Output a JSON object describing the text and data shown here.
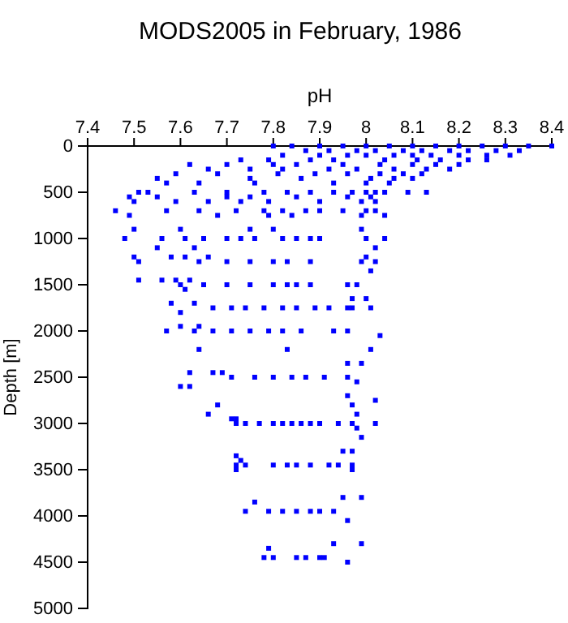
{
  "chart_data": {
    "type": "scatter",
    "title": "MODS2005 in February, 1986",
    "xlabel": "pH",
    "ylabel": "Depth [m]",
    "marker": "square",
    "xlim": [
      7.4,
      8.4
    ],
    "xticks": [
      7.4,
      7.5,
      7.6,
      7.7,
      7.8,
      7.9,
      8,
      8.1,
      8.2,
      8.3,
      8.4
    ],
    "ylim": [
      5000,
      0
    ],
    "yticks": [
      0,
      500,
      1000,
      1500,
      2000,
      2500,
      3000,
      3500,
      4000,
      4500,
      5000
    ],
    "series": [
      {
        "color": "#0000ff",
        "x": [
          7.8,
          7.84,
          7.9,
          7.95,
          8.0,
          8.05,
          8.1,
          8.15,
          8.2,
          8.25,
          8.3,
          8.35,
          8.4,
          7.87,
          7.92,
          7.98,
          8.02,
          8.08,
          8.12,
          8.18,
          8.22,
          8.28,
          8.33,
          7.82,
          7.9,
          7.96,
          8.0,
          8.06,
          8.1,
          8.14,
          8.2,
          8.26,
          8.31,
          7.73,
          7.79,
          7.88,
          7.93,
          8.04,
          8.11,
          8.16,
          8.22,
          8.26,
          7.62,
          7.7,
          7.8,
          7.85,
          7.95,
          8.03,
          8.1,
          8.15,
          8.2,
          7.66,
          7.75,
          7.82,
          7.92,
          7.98,
          8.06,
          8.13,
          8.18,
          7.59,
          7.68,
          7.81,
          7.89,
          7.96,
          8.03,
          8.08,
          8.12,
          7.55,
          7.75,
          7.86,
          8.01,
          8.06,
          8.1,
          7.57,
          7.64,
          7.76,
          7.93,
          8.0,
          8.05,
          7.51,
          7.53,
          7.63,
          7.7,
          7.78,
          7.83,
          7.88,
          7.93,
          7.97,
          8.0,
          8.02,
          8.04,
          8.09,
          8.13,
          7.49,
          7.55,
          7.7,
          7.75,
          7.85,
          7.96,
          8.01,
          7.5,
          7.59,
          7.66,
          7.73,
          7.79,
          7.9,
          7.99,
          8.02,
          7.46,
          7.57,
          7.64,
          7.72,
          7.78,
          7.82,
          7.87,
          7.9,
          7.95,
          8.0,
          8.02,
          7.49,
          7.68,
          7.79,
          7.84,
          7.99,
          8.04,
          7.5,
          7.6,
          7.75,
          7.8,
          7.99,
          7.48,
          7.56,
          7.61,
          7.65,
          7.7,
          7.73,
          7.76,
          7.82,
          7.85,
          7.88,
          7.9,
          8.0,
          8.04,
          7.55,
          7.63,
          8.02,
          7.5,
          7.58,
          7.61,
          7.66,
          8.0,
          7.51,
          7.64,
          7.7,
          7.75,
          7.8,
          7.83,
          7.88,
          7.99,
          8.02,
          8.01,
          7.51,
          7.56,
          7.59,
          7.62,
          7.6,
          7.65,
          7.7,
          7.75,
          7.8,
          7.83,
          7.85,
          7.88,
          7.96,
          7.98,
          7.61,
          7.97,
          8.0,
          7.58,
          7.63,
          7.67,
          7.71,
          7.74,
          7.78,
          7.82,
          7.85,
          7.89,
          7.92,
          7.96,
          7.97,
          8.01,
          7.6,
          7.6,
          7.64,
          7.57,
          7.63,
          7.67,
          7.71,
          7.75,
          7.79,
          7.82,
          7.86,
          7.93,
          7.96,
          8.03,
          7.64,
          7.83,
          8.01,
          7.96,
          7.99,
          7.62,
          7.67,
          7.69,
          7.71,
          7.76,
          7.8,
          7.84,
          7.87,
          7.91,
          7.96,
          7.98,
          7.6,
          7.62,
          7.96,
          8.02,
          7.68,
          7.97,
          7.98,
          7.66,
          7.72,
          7.71,
          7.72,
          7.74,
          7.77,
          7.8,
          7.82,
          7.84,
          7.86,
          7.88,
          7.9,
          7.94,
          7.97,
          8.02,
          7.98,
          7.99,
          7.95,
          7.97,
          7.72,
          7.73,
          7.72,
          7.74,
          7.8,
          7.83,
          7.85,
          7.88,
          7.92,
          7.94,
          7.97,
          7.72,
          7.97,
          7.95,
          7.99,
          7.76,
          7.74,
          7.79,
          7.82,
          7.85,
          7.88,
          7.9,
          7.93,
          7.96,
          7.93,
          7.99,
          7.79,
          7.78,
          7.8,
          7.85,
          7.87,
          7.9,
          7.91,
          7.96
        ],
        "values": [
          0,
          0,
          0,
          0,
          0,
          0,
          0,
          0,
          0,
          0,
          0,
          0,
          0,
          50,
          50,
          50,
          50,
          50,
          50,
          50,
          50,
          50,
          50,
          100,
          100,
          100,
          100,
          100,
          100,
          100,
          100,
          100,
          100,
          150,
          150,
          150,
          150,
          150,
          150,
          150,
          150,
          150,
          200,
          200,
          200,
          200,
          200,
          200,
          200,
          200,
          200,
          250,
          250,
          250,
          250,
          250,
          250,
          250,
          250,
          300,
          300,
          300,
          300,
          300,
          300,
          300,
          300,
          350,
          350,
          350,
          350,
          350,
          350,
          400,
          400,
          400,
          400,
          400,
          400,
          500,
          500,
          500,
          500,
          500,
          500,
          500,
          500,
          500,
          500,
          500,
          500,
          500,
          500,
          550,
          550,
          550,
          550,
          550,
          550,
          550,
          600,
          600,
          600,
          600,
          600,
          600,
          600,
          600,
          700,
          700,
          700,
          700,
          700,
          700,
          700,
          700,
          700,
          700,
          700,
          750,
          750,
          750,
          750,
          750,
          750,
          900,
          900,
          900,
          900,
          900,
          1000,
          1000,
          1000,
          1000,
          1000,
          1000,
          1000,
          1000,
          1000,
          1000,
          1000,
          1000,
          1000,
          1100,
          1100,
          1100,
          1200,
          1200,
          1200,
          1200,
          1200,
          1250,
          1250,
          1250,
          1250,
          1250,
          1250,
          1250,
          1250,
          1250,
          1350,
          1450,
          1450,
          1450,
          1450,
          1500,
          1500,
          1500,
          1500,
          1500,
          1500,
          1500,
          1500,
          1500,
          1500,
          1550,
          1650,
          1650,
          1700,
          1700,
          1750,
          1750,
          1750,
          1750,
          1750,
          1750,
          1750,
          1750,
          1750,
          1750,
          1750,
          1800,
          1950,
          1950,
          2000,
          2000,
          2000,
          2000,
          2000,
          2000,
          2000,
          2000,
          2000,
          2000,
          2050,
          2200,
          2200,
          2200,
          2350,
          2350,
          2450,
          2450,
          2450,
          2500,
          2500,
          2500,
          2500,
          2500,
          2500,
          2500,
          2550,
          2600,
          2600,
          2700,
          2750,
          2800,
          2800,
          2900,
          2900,
          2950,
          2950,
          3000,
          3000,
          3000,
          3000,
          3000,
          3000,
          3000,
          3000,
          3000,
          3000,
          3000,
          3000,
          3050,
          3150,
          3300,
          3300,
          3350,
          3400,
          3450,
          3450,
          3450,
          3450,
          3450,
          3450,
          3450,
          3450,
          3450,
          3500,
          3500,
          3800,
          3800,
          3850,
          3950,
          3950,
          3950,
          3950,
          3950,
          3950,
          3950,
          4050,
          4300,
          4300,
          4350,
          4450,
          4450,
          4450,
          4450,
          4450,
          4450,
          4500
        ]
      }
    ]
  }
}
